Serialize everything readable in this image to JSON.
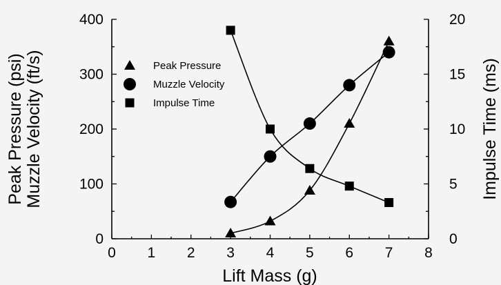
{
  "chart_data": {
    "type": "scatter",
    "xlabel": "Lift Mass (g)",
    "ylabel_lines": [
      "Peak Pressure (psi)",
      "Muzzle Velocity (ft/s)"
    ],
    "y2label": "Impulse Time (ms)",
    "xlim": [
      0,
      8
    ],
    "ylim": [
      0,
      400
    ],
    "y2lim": [
      0,
      20
    ],
    "x_ticks": [
      "0",
      "1",
      "2",
      "3",
      "4",
      "5",
      "6",
      "7",
      "8"
    ],
    "y_ticks": [
      "0",
      "100",
      "200",
      "300",
      "400"
    ],
    "y2_ticks": [
      "0",
      "5",
      "10",
      "15",
      "20"
    ],
    "legend_position": "upper-left-inside",
    "series": [
      {
        "name": "Peak Pressure",
        "marker": "triangle",
        "axis": "left",
        "x": [
          3,
          4,
          5,
          6,
          7
        ],
        "y": [
          10,
          32,
          88,
          210,
          360
        ]
      },
      {
        "name": "Muzzle Velocity",
        "marker": "circle",
        "axis": "left",
        "x": [
          3,
          4,
          5,
          6,
          7
        ],
        "y": [
          67,
          150,
          210,
          280,
          340
        ]
      },
      {
        "name": "Impulse Time",
        "marker": "square",
        "axis": "right",
        "x": [
          3,
          4,
          5,
          6,
          7
        ],
        "y": [
          19,
          10,
          6.4,
          4.8,
          3.3
        ]
      }
    ]
  }
}
